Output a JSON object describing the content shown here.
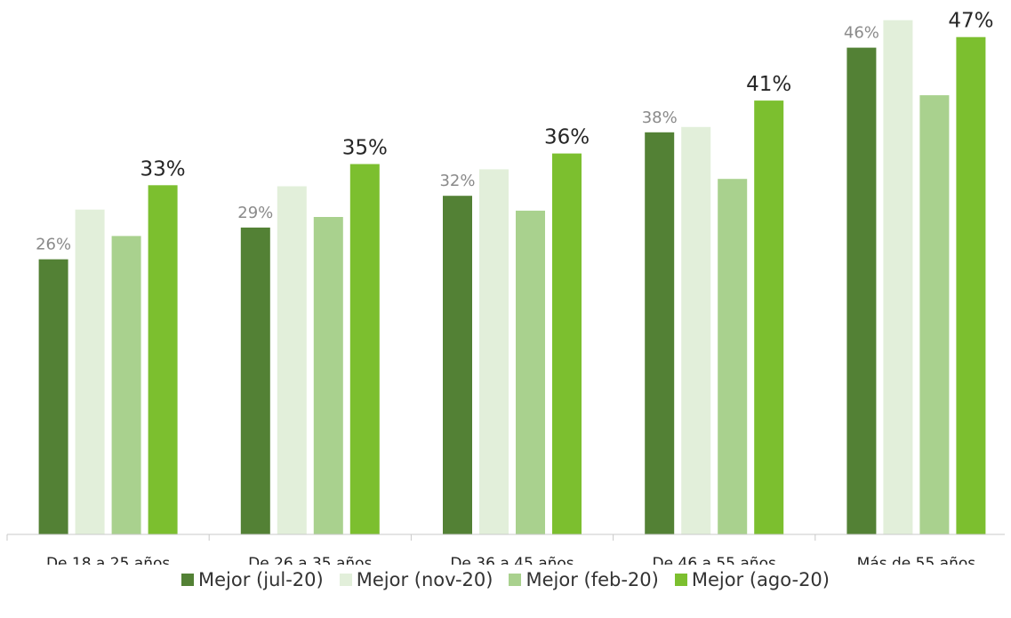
{
  "chart_data": {
    "type": "bar",
    "categories": [
      "De 18 a 25 años",
      "De 26 a 35 años",
      "De 36 a 45 años",
      "De 46 a 55 años",
      "Más de 55 años"
    ],
    "series": [
      {
        "name": "Mejor (jul-20)",
        "color": "#538135",
        "values": [
          26,
          29,
          32,
          38,
          46
        ],
        "labels": [
          "26%",
          "29%",
          "32%",
          "38%",
          "46%"
        ]
      },
      {
        "name": "Mejor (nov-20)",
        "color": "#e2efda",
        "values": [
          30.7,
          32.9,
          34.5,
          38.5,
          48.6
        ]
      },
      {
        "name": "Mejor (feb-20)",
        "color": "#a9d18e",
        "values": [
          28.2,
          30.0,
          30.6,
          33.6,
          41.5
        ]
      },
      {
        "name": "Mejor (ago-20)",
        "color": "#7cbf2f",
        "values": [
          33,
          35,
          36,
          41,
          47
        ],
        "labels": [
          "33%",
          "35%",
          "36%",
          "41%",
          "47%"
        ]
      }
    ],
    "ylim": [
      0,
      50
    ],
    "legend_position": "bottom",
    "grid": false
  }
}
